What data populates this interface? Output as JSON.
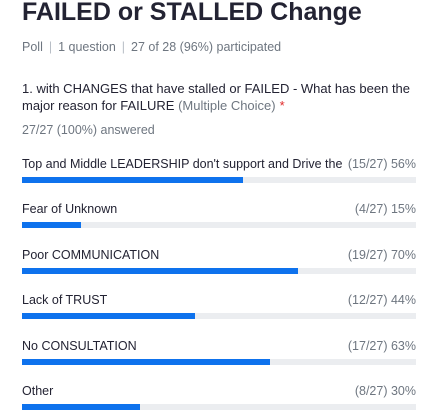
{
  "poll": {
    "title": "FAILED or STALLED Change",
    "type": "Poll",
    "question_count": "1 question",
    "participation": "27 of 28 (96%) participated"
  },
  "question": {
    "text": "1. with  CHANGES that have stalled or FAILED  - What has been the major reason for FAILURE",
    "choice_type": "(Multiple Choice)",
    "required_mark": "*",
    "answered": "27/27 (100%) answered"
  },
  "options": [
    {
      "label": "Top and Middle LEADERSHIP don't support and Drive the ...",
      "stats": "(15/27) 56%",
      "percent": 56
    },
    {
      "label": "Fear of Unknown",
      "stats": "(4/27) 15%",
      "percent": 15
    },
    {
      "label": "Poor COMMUNICATION",
      "stats": "(19/27) 70%",
      "percent": 70
    },
    {
      "label": "Lack of TRUST",
      "stats": "(12/27) 44%",
      "percent": 44
    },
    {
      "label": "No CONSULTATION",
      "stats": "(17/27) 63%",
      "percent": 63
    },
    {
      "label": "Other",
      "stats": "(8/27) 30%",
      "percent": 30
    }
  ],
  "colors": {
    "bar_fill": "#0e72ed",
    "bar_track": "#ebedf0",
    "required": "#e02828"
  }
}
